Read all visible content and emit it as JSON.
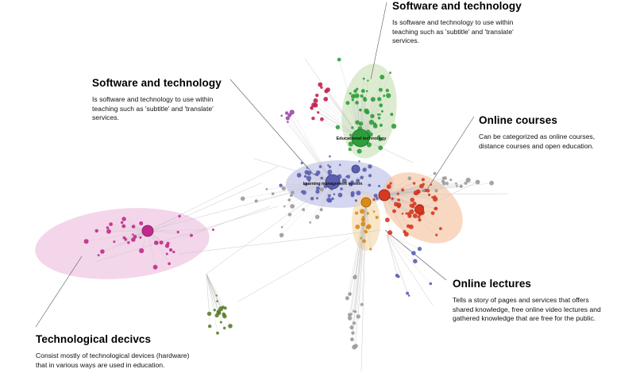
{
  "annotations": {
    "software_top": {
      "title": "Software and technology",
      "text": "Is software and technology to use within teaching such as 'subtitle' and 'translate' services."
    },
    "software_left": {
      "title": "Software and technology",
      "text": "Is software and technology to use within teaching such as 'subtitle' and 'translate' services."
    },
    "online_courses": {
      "title": "Online courses",
      "text": "Can be categorized as online courses, distance courses and open education."
    },
    "online_lectures": {
      "title": "Online lectures",
      "text": "Tells a story of pages and services that offers shared knowledge, free online video lectures and gathered knowledge that are free for the public."
    },
    "devices": {
      "title": "Technological decivcs",
      "text": "Consist mostly of technological devices (hardware) that in various ways are used in education."
    }
  },
  "node_labels": {
    "educational_technology": "Educational technology",
    "learning_management": "Learning management system"
  },
  "colors": {
    "green": "#2e9e3a",
    "blue": "#5a5fb0",
    "red": "#d6391f",
    "orange": "#d98b1a",
    "magenta": "#c02a8a",
    "olive": "#5a7d2a",
    "gray": "#9a9a9a",
    "crimson": "#c0244a",
    "purple": "#9a4aa8"
  }
}
